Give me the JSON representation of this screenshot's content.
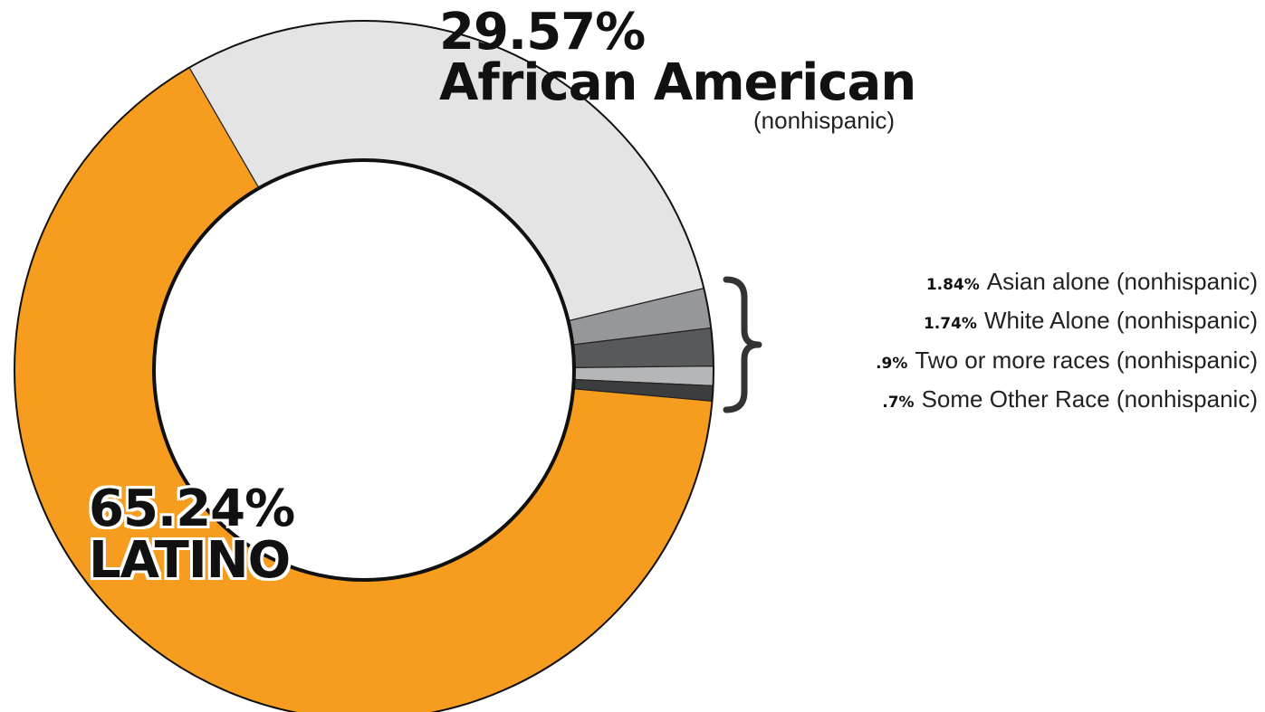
{
  "chart_data": {
    "type": "pie",
    "title": "",
    "slices": [
      {
        "label": "African American (nonhispanic)",
        "value": 29.57,
        "value_label": "29.57%",
        "color": "#e4e4e5"
      },
      {
        "label": "Asian alone (nonhispanic)",
        "value": 1.84,
        "value_label": "1.84%",
        "color": "#96979a"
      },
      {
        "label": "White Alone (nonhispanic)",
        "value": 1.74,
        "value_label": "1.74%",
        "color": "#58595b"
      },
      {
        "label": "Two or more races (nonhispanic)",
        "value": 0.9,
        "value_label": ".9%",
        "color": "#b5b6b8"
      },
      {
        "label": "Some Other Race (nonhispanic)",
        "value": 0.7,
        "value_label": ".7%",
        "color": "#3c3d3f"
      },
      {
        "label": "Latino",
        "value": 65.24,
        "value_label": "65.24%",
        "color": "#f69d1f"
      }
    ],
    "donut": true,
    "legend_position": "right"
  },
  "labels": {
    "african_american": {
      "pct": "29.57%",
      "name": "African American",
      "sub": "(nonhispanic)"
    },
    "latino": {
      "pct": "65.24%",
      "name": "LATINO"
    },
    "legend": [
      {
        "pct": "1.84%",
        "label": "Asian alone (nonhispanic)"
      },
      {
        "pct": "1.74%",
        "label": "White Alone (nonhispanic)"
      },
      {
        "pct": ".9%",
        "label": "Two or more races (nonhispanic)"
      },
      {
        "pct": ".7%",
        "label": "Some Other Race (nonhispanic)"
      }
    ]
  }
}
